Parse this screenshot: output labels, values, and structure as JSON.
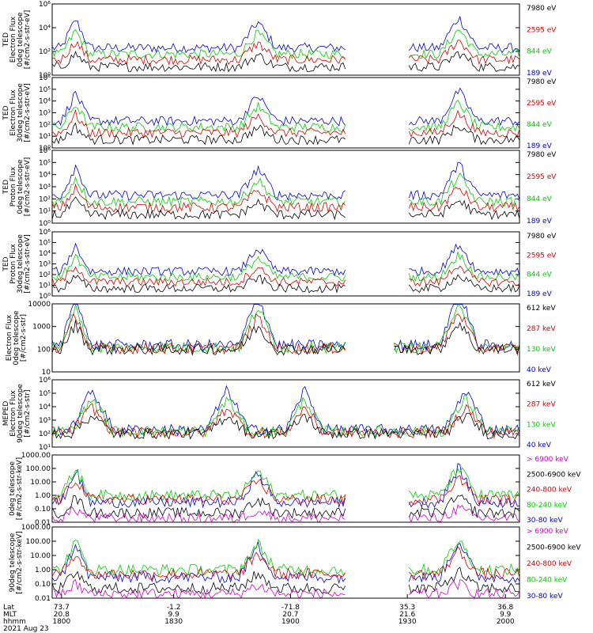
{
  "chart_data": {
    "type": "line",
    "date": "2021 Aug 23",
    "x_axis": {
      "row_labels": [
        "Lat",
        "MLT",
        "hhmm"
      ],
      "ticks": [
        {
          "lat": "73.7",
          "mlt": "20.8",
          "hhmm": "1800"
        },
        {
          "lat": "-1.2",
          "mlt": "9.9",
          "hhmm": "1830"
        },
        {
          "lat": "-71.8",
          "mlt": "20.7",
          "hhmm": "1900"
        },
        {
          "lat": "35.3",
          "mlt": "21.6",
          "hhmm": "1930"
        },
        {
          "lat": "36.8",
          "mlt": "9.9",
          "hhmm": "2000"
        }
      ]
    },
    "panels": [
      {
        "ylabel": [
          "TED",
          "Electron Flux",
          "0deg telescope",
          "[#/cm2-s-str-eV]"
        ],
        "scale": "log",
        "ylim": [
          1,
          1000000
        ],
        "ticks": [
          {
            "v": 1,
            "label": "10⁰"
          },
          {
            "v": 100,
            "label": "10²"
          },
          {
            "v": 10000,
            "label": "10⁴"
          },
          {
            "v": 1000000,
            "label": "10⁶"
          }
        ],
        "legend": [
          {
            "label": "7980 eV",
            "color": "#000000"
          },
          {
            "label": "2595 eV",
            "color": "#d40000"
          },
          {
            "label": "844 eV",
            "color": "#00cc00"
          },
          {
            "label": "189 eV",
            "color": "#0000cc"
          }
        ]
      },
      {
        "ylabel": [
          "TED",
          "Electron Flux",
          "30deg telescope",
          "[#/cm2-s-str-eV]"
        ],
        "scale": "log",
        "ylim": [
          1,
          1000000
        ],
        "ticks": [
          {
            "v": 1,
            "label": "10⁰"
          },
          {
            "v": 10,
            "label": "10¹"
          },
          {
            "v": 100,
            "label": "10²"
          },
          {
            "v": 1000,
            "label": "10³"
          },
          {
            "v": 10000,
            "label": "10⁴"
          },
          {
            "v": 100000,
            "label": "10⁵"
          },
          {
            "v": 1000000,
            "label": "10⁶"
          }
        ],
        "legend": [
          {
            "label": "7980 eV",
            "color": "#000000"
          },
          {
            "label": "2595 eV",
            "color": "#d40000"
          },
          {
            "label": "844 eV",
            "color": "#00cc00"
          },
          {
            "label": "189 eV",
            "color": "#0000cc"
          }
        ]
      },
      {
        "ylabel": [
          "TED",
          "Proton Flux",
          "0deg telescope",
          "[#/cm2-s-str-eV]"
        ],
        "scale": "log",
        "ylim": [
          1,
          1000000
        ],
        "ticks": [
          {
            "v": 1,
            "label": "10⁰"
          },
          {
            "v": 10,
            "label": "10¹"
          },
          {
            "v": 100,
            "label": "10²"
          },
          {
            "v": 1000,
            "label": "10³"
          },
          {
            "v": 10000,
            "label": "10⁴"
          },
          {
            "v": 100000,
            "label": "10⁵"
          },
          {
            "v": 1000000,
            "label": "10⁶"
          }
        ],
        "legend": [
          {
            "label": "7980 eV",
            "color": "#000000"
          },
          {
            "label": "2595 eV",
            "color": "#d40000"
          },
          {
            "label": "844 eV",
            "color": "#00cc00"
          },
          {
            "label": "189 eV",
            "color": "#0000cc"
          }
        ]
      },
      {
        "ylabel": [
          "TED",
          "Proton Flux",
          "30deg telescope",
          "[#/cm2-s-str-eV]"
        ],
        "scale": "log",
        "ylim": [
          1,
          1000000
        ],
        "ticks": [
          {
            "v": 1,
            "label": "10⁰"
          },
          {
            "v": 10,
            "label": "10¹"
          },
          {
            "v": 100,
            "label": "10²"
          },
          {
            "v": 1000,
            "label": "10³"
          },
          {
            "v": 10000,
            "label": "10⁴"
          },
          {
            "v": 100000,
            "label": "10⁵"
          },
          {
            "v": 1000000,
            "label": "10⁶"
          }
        ],
        "legend": [
          {
            "label": "7980 eV",
            "color": "#000000"
          },
          {
            "label": "2595 eV",
            "color": "#d40000"
          },
          {
            "label": "844 eV",
            "color": "#00cc00"
          },
          {
            "label": "189 eV",
            "color": "#0000cc"
          }
        ]
      },
      {
        "ylabel": [
          "Electron Flux",
          "0deg telescope",
          "[#/cm2-s-str]"
        ],
        "scale": "log",
        "ylim": [
          10,
          10000
        ],
        "ticks": [
          {
            "v": 10,
            "label": "10"
          },
          {
            "v": 100,
            "label": "100"
          },
          {
            "v": 1000,
            "label": "1000"
          },
          {
            "v": 10000,
            "label": "10000"
          }
        ],
        "legend": [
          {
            "label": "612 keV",
            "color": "#000000"
          },
          {
            "label": "287 keV",
            "color": "#d40000"
          },
          {
            "label": "130 keV",
            "color": "#00cc00"
          },
          {
            "label": "40 keV",
            "color": "#0000cc"
          }
        ]
      },
      {
        "ylabel": [
          "MEPED",
          "Electron Flux",
          "90deg telescope",
          "[#/cm2-s-str]"
        ],
        "scale": "log",
        "ylim": [
          10,
          1000000
        ],
        "ticks": [
          {
            "v": 10,
            "label": "10¹"
          },
          {
            "v": 100,
            "label": "10²"
          },
          {
            "v": 1000,
            "label": "10³"
          },
          {
            "v": 10000,
            "label": "10⁴"
          },
          {
            "v": 100000,
            "label": "10⁵"
          },
          {
            "v": 1000000,
            "label": "10⁶"
          }
        ],
        "legend": [
          {
            "label": "612 keV",
            "color": "#000000"
          },
          {
            "label": "287 keV",
            "color": "#d40000"
          },
          {
            "label": "130 keV",
            "color": "#00cc00"
          },
          {
            "label": "40 keV",
            "color": "#0000cc"
          }
        ]
      },
      {
        "ylabel": [
          "0deg telescope",
          "[#/cm2-s-str-keV]"
        ],
        "scale": "log",
        "ylim": [
          0.01,
          1000
        ],
        "ticks": [
          {
            "v": 0.01,
            "label": "0.01"
          },
          {
            "v": 0.1,
            "label": "0.10"
          },
          {
            "v": 1,
            "label": "1.00"
          },
          {
            "v": 10,
            "label": "10.00"
          },
          {
            "v": 100,
            "label": "100.00"
          },
          {
            "v": 1000,
            "label": "1000.00"
          }
        ],
        "legend": [
          {
            "label": "> 6900 keV",
            "color": "#cc00cc"
          },
          {
            "label": "2500-6900 keV",
            "color": "#000000"
          },
          {
            "label": "240-800 keV",
            "color": "#d40000"
          },
          {
            "label": "80-240 keV",
            "color": "#00cc00"
          },
          {
            "label": "30-80 keV",
            "color": "#0000cc"
          }
        ]
      },
      {
        "ylabel": [
          "90deg telescope",
          "[#/cm2-s-str-keV]"
        ],
        "scale": "log",
        "ylim": [
          0.01,
          1000
        ],
        "ticks": [
          {
            "v": 0.01,
            "label": "0.01"
          },
          {
            "v": 0.1,
            "label": "0.10"
          },
          {
            "v": 1,
            "label": "1.00"
          },
          {
            "v": 10,
            "label": "10.00"
          },
          {
            "v": 100,
            "label": "100.00"
          },
          {
            "v": 1000,
            "label": "1000.00"
          }
        ],
        "legend": [
          {
            "label": "> 6900 keV",
            "color": "#cc00cc"
          },
          {
            "label": "2500-6900 keV",
            "color": "#000000"
          },
          {
            "label": "240-800 keV",
            "color": "#d40000"
          },
          {
            "label": "80-240 keV",
            "color": "#00cc00"
          },
          {
            "label": "30-80 keV",
            "color": "#0000cc"
          }
        ]
      }
    ]
  }
}
